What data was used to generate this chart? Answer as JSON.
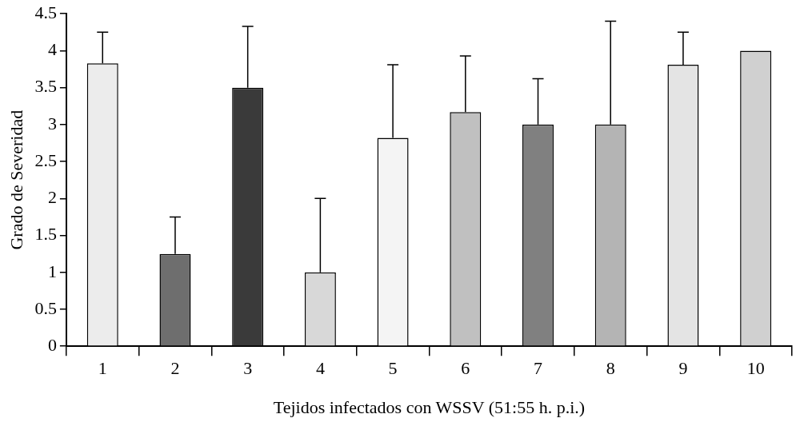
{
  "chart_data": {
    "type": "bar",
    "xlabel": "Tejidos infectados con WSSV (51:55 h. p.i.)",
    "ylabel": "Grado de Severidad",
    "categories": [
      "1",
      "2",
      "3",
      "4",
      "5",
      "6",
      "7",
      "8",
      "9",
      "10"
    ],
    "values": [
      3.83,
      1.25,
      3.5,
      1.0,
      2.82,
      3.17,
      3.0,
      3.0,
      3.81,
      4.0
    ],
    "colors": [
      "#ececec",
      "#6e6e6e",
      "#3a3a3a",
      "#d8d8d8",
      "#f4f4f4",
      "#c0c0c0",
      "#808080",
      "#b4b4b4",
      "#e4e4e4",
      "#d0d0d0"
    ],
    "errors": [
      [
        3.83,
        4.25
      ],
      [
        1.25,
        1.75
      ],
      [
        3.5,
        4.33
      ],
      [
        1.0,
        2.0
      ],
      [
        2.82,
        3.81
      ],
      [
        3.17,
        3.93
      ],
      [
        3.0,
        3.62
      ],
      [
        3.0,
        4.4
      ],
      [
        3.81,
        4.25
      ],
      null
    ],
    "ylim": [
      0,
      4.5
    ],
    "yticks": [
      0,
      0.5,
      1,
      1.5,
      2,
      2.5,
      3,
      3.5,
      4,
      4.5
    ],
    "grid": false,
    "legend": false
  }
}
